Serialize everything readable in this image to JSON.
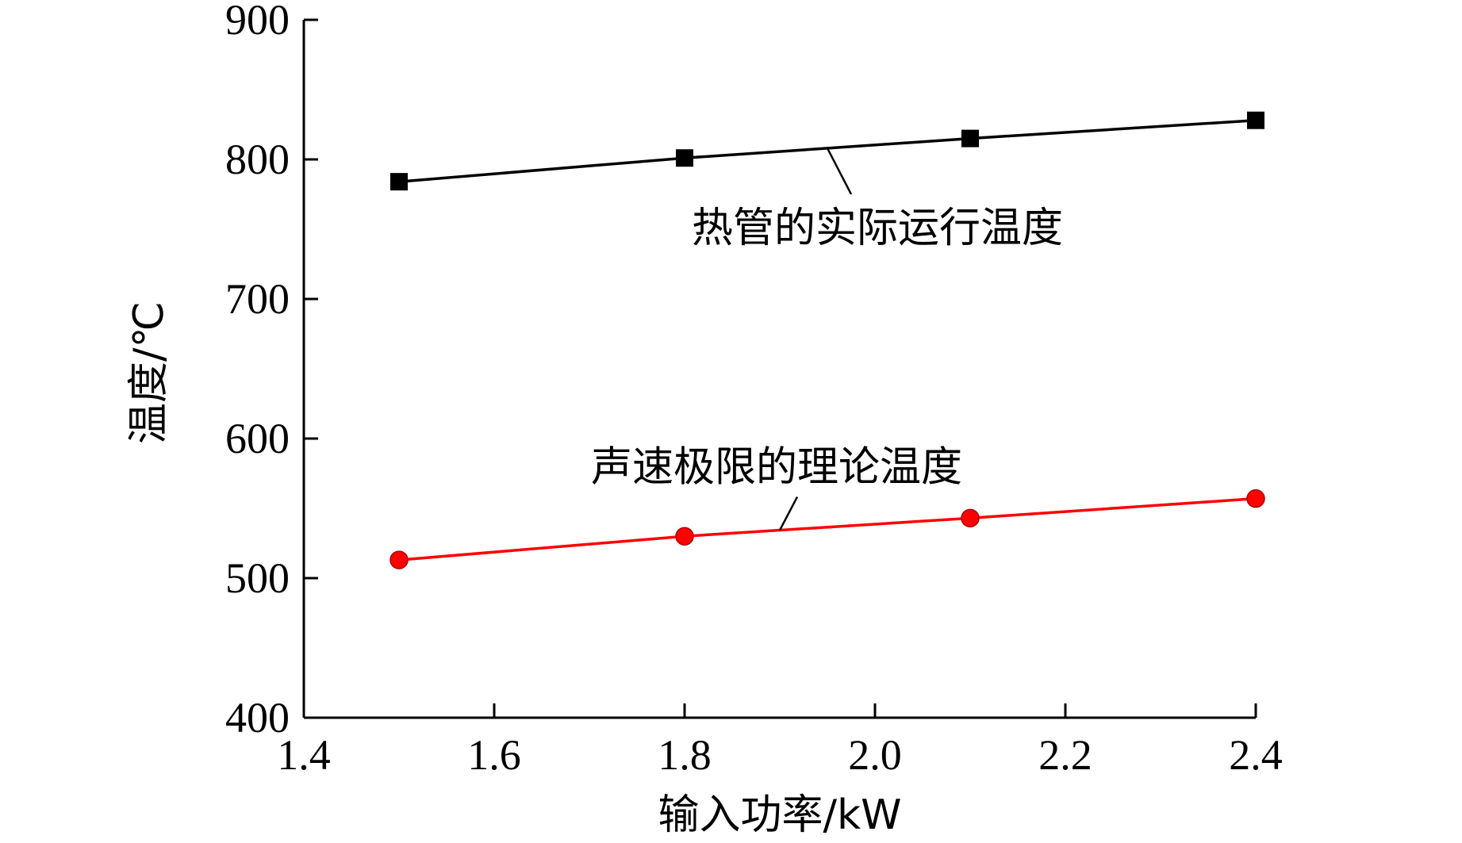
{
  "chart_data": {
    "type": "line",
    "xlabel": "输入功率/kW",
    "ylabel": "温度/℃",
    "xlim": [
      1.4,
      2.4
    ],
    "ylim": [
      400,
      900
    ],
    "xticks": [
      "1.4",
      "1.6",
      "1.8",
      "2.0",
      "2.2",
      "2.4"
    ],
    "yticks": [
      "400",
      "500",
      "600",
      "700",
      "800",
      "900"
    ],
    "grid": false,
    "x": [
      1.5,
      1.8,
      2.1,
      2.4
    ],
    "series": [
      {
        "name": "热管的实际运行温度",
        "values": [
          784,
          801,
          815,
          828
        ],
        "color": "#000000",
        "marker": "square",
        "callout_x": 1.95
      },
      {
        "name": "声速极限的理论温度",
        "values": [
          513,
          530,
          543,
          557
        ],
        "color": "#ff0000",
        "marker": "circle",
        "callout_x": 1.9
      }
    ]
  }
}
